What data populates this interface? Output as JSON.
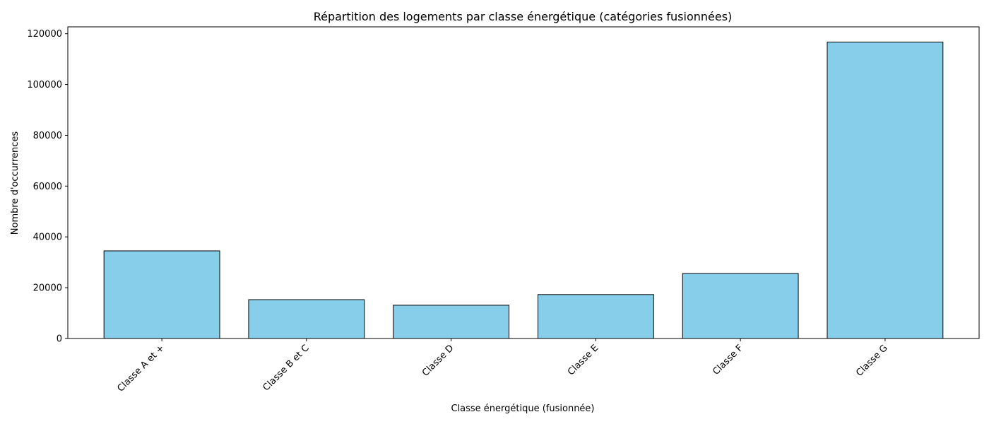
{
  "chart_data": {
    "type": "bar",
    "title": "Répartition des logements par classe énergétique (catégories fusionnées)",
    "xlabel": "Classe énergétique (fusionnée)",
    "ylabel": "Nombre d'occurrences",
    "categories": [
      "Classe A et +",
      "Classe B et C",
      "Classe D",
      "Classe E",
      "Classe F",
      "Classe G"
    ],
    "values": [
      34500,
      15300,
      13100,
      17300,
      25600,
      116700
    ],
    "ylim": [
      0,
      122700
    ],
    "yticks": [
      0,
      20000,
      40000,
      60000,
      80000,
      100000,
      120000
    ],
    "ytick_labels": [
      "0",
      "20000",
      "40000",
      "60000",
      "80000",
      "100000",
      "120000"
    ],
    "grid": false,
    "bar_color": "#87ceeb",
    "edge_color": "#000000"
  }
}
